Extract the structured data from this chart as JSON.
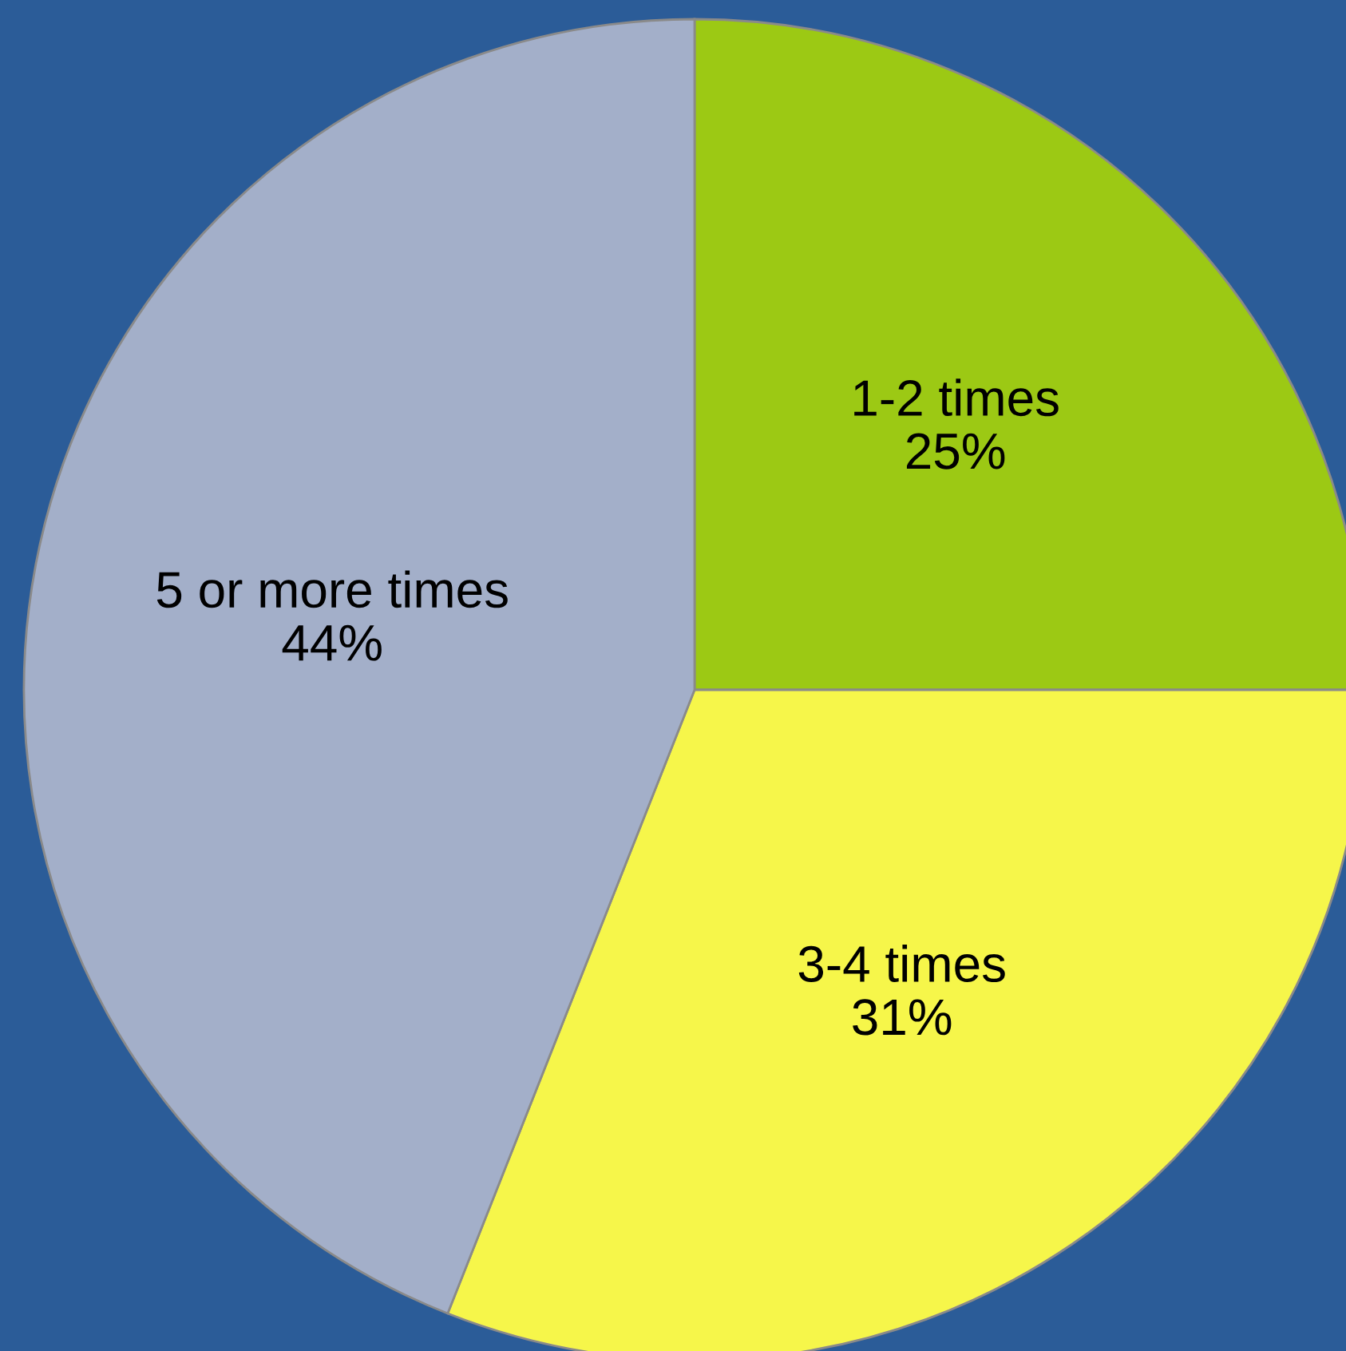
{
  "chart_data": {
    "type": "pie",
    "categories": [
      "1-2 times",
      "3-4 times",
      "5 or more times"
    ],
    "values": [
      25,
      31,
      44
    ],
    "colors": [
      "#9cc914",
      "#f6f64a",
      "#a3afc9"
    ],
    "value_labels": [
      "25%",
      "31%",
      "44%"
    ],
    "legend": false
  }
}
